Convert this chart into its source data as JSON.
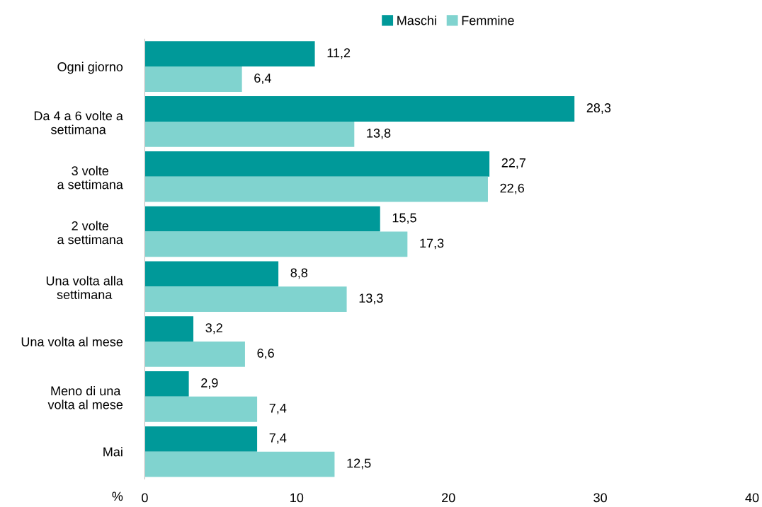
{
  "chart_data": {
    "type": "bar",
    "orientation": "horizontal",
    "xlabel": "%",
    "categories": [
      "Ogni giorno",
      "Da 4 a 6 volte a\nsettimana",
      "3 volte\na settimana",
      "2 volte\na settimana",
      "Una volta alla\nsettimana",
      "Una volta al mese",
      "Meno di una\nvolta al mese",
      "Mai"
    ],
    "series": [
      {
        "name": "Maschi",
        "color": "#009999",
        "values": [
          11.2,
          28.3,
          22.7,
          15.5,
          8.8,
          3.2,
          2.9,
          7.4
        ],
        "value_labels": [
          "11,2",
          "28,3",
          "22,7",
          "15,5",
          "8,8",
          "3,2",
          "2,9",
          "7,4"
        ]
      },
      {
        "name": "Femmine",
        "color": "#80d3cf",
        "values": [
          6.4,
          13.8,
          22.6,
          17.3,
          13.3,
          6.6,
          7.4,
          12.5
        ],
        "value_labels": [
          "6,4",
          "13,8",
          "22,6",
          "17,3",
          "13,3",
          "6,6",
          "7,4",
          "12,5"
        ]
      }
    ],
    "xlim": [
      0,
      40
    ],
    "xticks": [
      0,
      10,
      20,
      30,
      40
    ],
    "grid": false,
    "legend": "top",
    "tick_labels": "xy"
  }
}
